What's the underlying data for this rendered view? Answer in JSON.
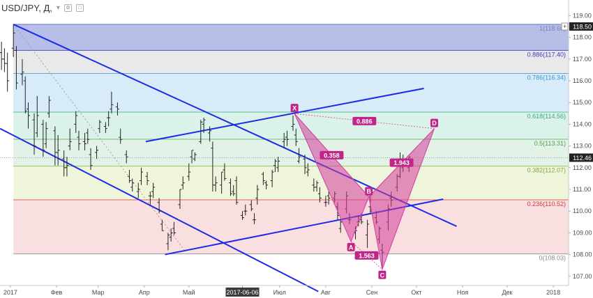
{
  "header": {
    "symbol": "USD/JPY",
    "separator": ",",
    "interval": "Д",
    "suffix": ","
  },
  "colors": {
    "trendline": "#1c2be8",
    "pattern_fill": "#d43d9b",
    "pattern_label_bg": "#c2258a",
    "candle": "#222222",
    "price_marker_bg": "#222222"
  },
  "price_axis": {
    "ticks": [
      "119.00",
      "118.00",
      "117.00",
      "116.00",
      "115.00",
      "114.00",
      "113.00",
      "112.00",
      "111.00",
      "110.00",
      "109.00",
      "108.00",
      "107.00"
    ],
    "markers": [
      {
        "price": 118.5,
        "label": "118.50",
        "prefix": "+"
      },
      {
        "price": 112.46,
        "label": "112.46",
        "prefix": ""
      }
    ]
  },
  "time_axis": {
    "labels": [
      "2017",
      "Фев",
      "Мар",
      "Апр",
      "Май",
      "2017-06-06",
      "Июл",
      "Авг",
      "Сен",
      "Окт",
      "Ноя",
      "Дек",
      "2018"
    ],
    "highlight": "2017-06-06"
  },
  "fibonacci": {
    "levels": [
      {
        "ratio": 1,
        "price": 118.6,
        "label": "1(118.60)",
        "fill": "#9fa8e0",
        "line": "#6a70c4",
        "text": "#7b80b6"
      },
      {
        "ratio": 0.886,
        "price": 117.4,
        "label": "0.886(117.40)",
        "fill": "#e2e2e2",
        "line": "#4e4ec6",
        "text": "#3b3bbf"
      },
      {
        "ratio": 0.786,
        "price": 116.34,
        "label": "0.786(116.34)",
        "fill": "#c9e4f6",
        "line": "#64a8d8",
        "text": "#3f95d1"
      },
      {
        "ratio": 0.618,
        "price": 114.56,
        "label": "0.618(114.56)",
        "fill": "#cdeee2",
        "line": "#5dbf95",
        "text": "#37a978"
      },
      {
        "ratio": 0.5,
        "price": 113.31,
        "label": "0.5(113.31)",
        "fill": "#d9eedd",
        "line": "#76bd78",
        "text": "#4ea24f"
      },
      {
        "ratio": 0.382,
        "price": 112.07,
        "label": "0.382(112.07)",
        "fill": "#eaf2cf",
        "line": "#9cc466",
        "text": "#82a93a"
      },
      {
        "ratio": 0.236,
        "price": 110.52,
        "label": "0.236(110.52)",
        "fill": "#f7d4d4",
        "line": "#de6262",
        "text": "#d23a3a"
      },
      {
        "ratio": 0,
        "price": 108.03,
        "label": "0(108.03)",
        "fill": "none",
        "line": "#9a9a9a",
        "text": "#8a8a8a"
      }
    ]
  },
  "harmonic_pattern": {
    "points": [
      {
        "name": "X",
        "date": "2017-07-11",
        "price": 114.49
      },
      {
        "name": "A",
        "date": "2017-08-18",
        "price": 108.6
      },
      {
        "name": "B",
        "date": "2017-08-30",
        "price": 110.66
      },
      {
        "name": "C",
        "date": "2017-09-08",
        "price": 107.32
      },
      {
        "name": "D",
        "date": "2017-10-13",
        "price": 113.8
      }
    ],
    "ratios": [
      {
        "value": "0.358",
        "from": "X",
        "to": "B"
      },
      {
        "value": "1.563",
        "from": "A",
        "to": "C"
      },
      {
        "value": "1.943",
        "from": "B",
        "to": "D"
      },
      {
        "value": "0.886",
        "from": "X",
        "to": "D"
      }
    ]
  },
  "trendlines": [
    {
      "name": "upper-channel-top",
      "from": {
        "date": "2017-01-03",
        "price": 118.6
      },
      "to": {
        "date": "2017-10-28",
        "price": 109.3
      }
    },
    {
      "name": "lower-channel-bottom",
      "from": {
        "date": "2016-12-25",
        "price": 113.8
      },
      "to": {
        "date": "2017-07-27",
        "price": 106.3
      }
    },
    {
      "name": "rising-channel-top",
      "from": {
        "date": "2017-04-02",
        "price": 113.2
      },
      "to": {
        "date": "2017-10-06",
        "price": 115.65
      }
    },
    {
      "name": "rising-channel-bottom",
      "from": {
        "date": "2017-04-15",
        "price": 108.0
      },
      "to": {
        "date": "2017-10-19",
        "price": 110.55
      }
    }
  ],
  "dotted_line": {
    "from": {
      "date": "2017-01-03",
      "price": 118.6
    },
    "to": {
      "date": "2017-04-28",
      "price": 108.2
    }
  },
  "chart_data": {
    "type": "candlestick",
    "title": "USD/JPY",
    "interval": "Д",
    "x_range": [
      "2016-12-25",
      "2018-01-08"
    ],
    "ylim": [
      106.8,
      119.4
    ],
    "grid": false,
    "legend": "none",
    "series": [
      {
        "name": "USD/JPY",
        "points": [
          [
            "2016-12-26",
            117.3,
            117.8,
            116.5,
            117.0
          ],
          [
            "2016-12-28",
            117.0,
            117.5,
            116.4,
            116.8
          ],
          [
            "2016-12-30",
            116.8,
            117.3,
            115.5,
            116.0
          ],
          [
            "2017-01-03",
            117.5,
            118.6,
            117.1,
            118.2
          ],
          [
            "2017-01-05",
            117.4,
            117.6,
            115.6,
            115.9
          ],
          [
            "2017-01-09",
            116.3,
            117.0,
            115.8,
            116.4
          ],
          [
            "2017-01-11",
            116.0,
            116.2,
            114.5,
            114.6
          ],
          [
            "2017-01-13",
            114.7,
            115.0,
            113.8,
            114.4
          ],
          [
            "2017-01-17",
            114.2,
            114.5,
            112.6,
            113.0
          ],
          [
            "2017-01-19",
            113.6,
            115.3,
            113.4,
            114.4
          ],
          [
            "2017-01-23",
            114.0,
            114.2,
            112.5,
            112.8
          ],
          [
            "2017-01-25",
            113.1,
            114.1,
            112.9,
            113.8
          ],
          [
            "2017-01-27",
            114.5,
            115.3,
            114.3,
            115.1
          ],
          [
            "2017-01-31",
            113.7,
            113.9,
            112.1,
            112.7
          ],
          [
            "2017-02-02",
            112.7,
            113.5,
            112.1,
            112.8
          ],
          [
            "2017-02-06",
            112.4,
            112.8,
            111.6,
            112.0
          ],
          [
            "2017-02-08",
            112.0,
            112.5,
            111.6,
            112.1
          ],
          [
            "2017-02-10",
            113.0,
            113.8,
            112.8,
            113.2
          ],
          [
            "2017-02-14",
            114.0,
            114.6,
            113.6,
            114.4
          ],
          [
            "2017-02-16",
            113.4,
            113.7,
            112.8,
            113.1
          ],
          [
            "2017-02-20",
            113.2,
            113.6,
            112.8,
            113.1
          ],
          [
            "2017-02-22",
            113.6,
            113.8,
            113.1,
            113.3
          ],
          [
            "2017-02-24",
            112.6,
            112.9,
            111.9,
            112.1
          ],
          [
            "2017-02-28",
            112.7,
            113.0,
            112.4,
            112.8
          ],
          [
            "2017-03-02",
            113.8,
            114.2,
            113.6,
            114.1
          ],
          [
            "2017-03-06",
            113.9,
            114.1,
            113.6,
            113.8
          ],
          [
            "2017-03-08",
            114.3,
            114.6,
            113.9,
            114.3
          ],
          [
            "2017-03-10",
            114.7,
            115.5,
            114.5,
            114.9
          ],
          [
            "2017-03-14",
            114.8,
            115.0,
            114.4,
            114.7
          ],
          [
            "2017-03-16",
            113.4,
            113.8,
            113.1,
            113.3
          ],
          [
            "2017-03-20",
            112.6,
            112.8,
            112.2,
            112.5
          ],
          [
            "2017-03-22",
            111.6,
            111.9,
            111.3,
            111.4
          ],
          [
            "2017-03-24",
            111.1,
            111.5,
            110.9,
            111.3
          ],
          [
            "2017-03-28",
            110.9,
            111.3,
            110.6,
            111.0
          ],
          [
            "2017-03-30",
            111.4,
            112.0,
            111.2,
            111.8
          ],
          [
            "2017-04-03",
            111.6,
            111.8,
            111.2,
            111.4
          ],
          [
            "2017-04-05",
            110.7,
            110.9,
            110.3,
            110.7
          ],
          [
            "2017-04-07",
            110.9,
            111.3,
            110.6,
            111.1
          ],
          [
            "2017-04-11",
            110.4,
            110.6,
            109.9,
            110.0
          ],
          [
            "2017-04-13",
            109.4,
            109.6,
            109.1,
            109.1
          ],
          [
            "2017-04-17",
            108.5,
            109.0,
            108.2,
            108.9
          ],
          [
            "2017-04-19",
            108.8,
            109.2,
            108.6,
            109.0
          ],
          [
            "2017-04-21",
            109.2,
            109.5,
            108.9,
            109.0
          ],
          [
            "2017-04-25",
            110.3,
            111.0,
            110.1,
            111.0
          ],
          [
            "2017-04-27",
            111.2,
            111.6,
            111.0,
            111.3
          ],
          [
            "2017-05-01",
            111.6,
            112.2,
            111.4,
            111.8
          ],
          [
            "2017-05-03",
            112.5,
            112.8,
            112.2,
            112.8
          ],
          [
            "2017-05-05",
            112.4,
            112.7,
            112.3,
            112.6
          ],
          [
            "2017-05-09",
            113.2,
            114.2,
            113.1,
            114.1
          ],
          [
            "2017-05-11",
            114.0,
            114.3,
            113.6,
            114.2
          ],
          [
            "2017-05-15",
            113.6,
            113.9,
            113.2,
            113.7
          ],
          [
            "2017-05-17",
            112.9,
            113.2,
            110.9,
            111.2
          ],
          [
            "2017-05-19",
            111.2,
            111.6,
            110.9,
            111.3
          ],
          [
            "2017-05-23",
            111.2,
            111.8,
            110.8,
            111.8
          ],
          [
            "2017-05-25",
            111.9,
            112.2,
            111.4,
            111.5
          ],
          [
            "2017-05-29",
            111.3,
            111.5,
            110.7,
            110.8
          ],
          [
            "2017-05-31",
            110.9,
            111.2,
            110.7,
            110.8
          ],
          [
            "2017-06-02",
            111.4,
            111.6,
            110.3,
            110.4
          ],
          [
            "2017-06-06",
            109.8,
            110.0,
            109.6,
            109.7
          ],
          [
            "2017-06-08",
            110.0,
            110.3,
            109.8,
            110.0
          ],
          [
            "2017-06-12",
            110.3,
            110.5,
            110.0,
            110.1
          ],
          [
            "2017-06-14",
            109.6,
            109.9,
            109.4,
            109.6
          ],
          [
            "2017-06-16",
            110.6,
            111.2,
            110.3,
            111.0
          ],
          [
            "2017-06-20",
            111.7,
            111.8,
            111.2,
            111.4
          ],
          [
            "2017-06-22",
            111.3,
            111.4,
            111.0,
            111.2
          ],
          [
            "2017-06-26",
            111.4,
            111.9,
            111.1,
            111.8
          ],
          [
            "2017-06-28",
            112.1,
            112.4,
            111.8,
            112.3
          ],
          [
            "2017-06-30",
            112.0,
            112.5,
            111.8,
            112.3
          ],
          [
            "2017-07-04",
            113.2,
            113.6,
            112.9,
            113.3
          ],
          [
            "2017-07-06",
            113.4,
            113.7,
            113.0,
            113.3
          ],
          [
            "2017-07-10",
            113.9,
            114.4,
            113.7,
            114.0
          ],
          [
            "2017-07-12",
            113.5,
            113.8,
            113.0,
            113.2
          ],
          [
            "2017-07-14",
            112.3,
            112.9,
            112.2,
            112.5
          ],
          [
            "2017-07-18",
            112.4,
            112.6,
            111.7,
            112.0
          ],
          [
            "2017-07-20",
            111.8,
            112.2,
            111.6,
            111.9
          ],
          [
            "2017-07-24",
            111.2,
            111.5,
            110.9,
            111.1
          ],
          [
            "2017-07-26",
            111.1,
            111.4,
            110.9,
            111.3
          ],
          [
            "2017-07-28",
            110.8,
            111.1,
            110.4,
            110.6
          ],
          [
            "2017-08-01",
            110.4,
            110.7,
            110.2,
            110.4
          ],
          [
            "2017-08-03",
            110.7,
            110.9,
            110.3,
            110.6
          ],
          [
            "2017-08-07",
            110.6,
            110.9,
            110.4,
            110.8
          ],
          [
            "2017-08-09",
            110.2,
            110.4,
            109.6,
            109.8
          ],
          [
            "2017-08-11",
            109.2,
            109.6,
            109.0,
            109.5
          ],
          [
            "2017-08-15",
            110.1,
            110.9,
            109.9,
            110.7
          ],
          [
            "2017-08-17",
            109.6,
            109.9,
            109.4,
            109.6
          ],
          [
            "2017-08-21",
            109.0,
            109.3,
            108.7,
            109.1
          ],
          [
            "2017-08-23",
            109.5,
            109.8,
            109.3,
            109.5
          ],
          [
            "2017-08-25",
            109.6,
            109.9,
            109.4,
            109.5
          ],
          [
            "2017-08-29",
            108.9,
            109.6,
            108.3,
            109.4
          ],
          [
            "2017-08-31",
            110.2,
            110.7,
            109.9,
            110.0
          ],
          [
            "2017-09-04",
            109.7,
            110.0,
            109.4,
            109.5
          ],
          [
            "2017-09-06",
            108.7,
            109.3,
            108.5,
            109.2
          ],
          [
            "2017-09-08",
            108.2,
            108.5,
            107.3,
            108.1
          ],
          [
            "2017-09-12",
            109.5,
            110.3,
            109.1,
            110.1
          ],
          [
            "2017-09-14",
            110.6,
            110.9,
            110.2,
            110.5
          ],
          [
            "2017-09-18",
            111.1,
            111.7,
            110.9,
            111.6
          ],
          [
            "2017-09-20",
            111.6,
            112.7,
            111.5,
            112.4
          ],
          [
            "2017-09-22",
            112.0,
            112.6,
            111.8,
            112.1
          ],
          [
            "2017-09-26",
            112.0,
            112.5,
            111.8,
            112.5
          ]
        ]
      }
    ]
  }
}
